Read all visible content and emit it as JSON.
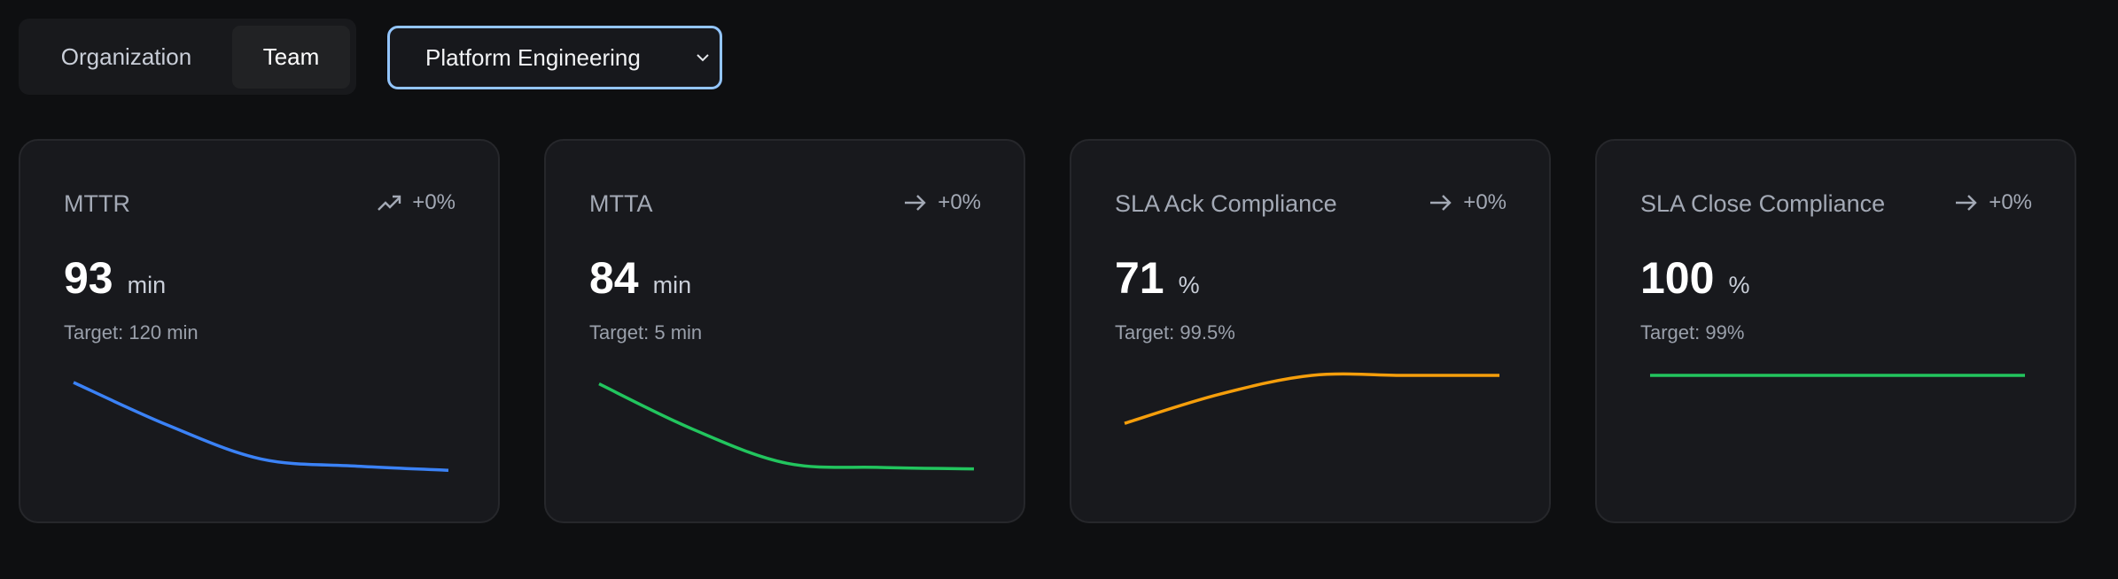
{
  "scope_toggle": {
    "options": [
      "Organization",
      "Team"
    ],
    "selected": "Team"
  },
  "team_select": {
    "value": "Platform Engineering"
  },
  "colors": {
    "accent": "#93c5fd",
    "blue": "#3b82f6",
    "green": "#22c55e",
    "orange": "#f59e0b"
  },
  "cards": [
    {
      "title": "MTTR",
      "trend_icon": "trending-up-icon",
      "trend": "+0%",
      "value": "93",
      "unit": "min",
      "target": "Target: 120 min",
      "color": "#3b82f6"
    },
    {
      "title": "MTTA",
      "trend_icon": "arrow-right-icon",
      "trend": "+0%",
      "value": "84",
      "unit": "min",
      "target": "Target: 5 min",
      "color": "#22c55e"
    },
    {
      "title": "SLA Ack Compliance",
      "trend_icon": "arrow-right-icon",
      "trend": "+0%",
      "value": "71",
      "unit": "%",
      "target": "Target: 99.5%",
      "color": "#f59e0b"
    },
    {
      "title": "SLA Close Compliance",
      "trend_icon": "arrow-right-icon",
      "trend": "+0%",
      "value": "100",
      "unit": "%",
      "target": "Target: 99%",
      "color": "#22c55e"
    }
  ],
  "chart_data": [
    {
      "type": "line",
      "title": "MTTR",
      "values": [
        155,
        125,
        101,
        96,
        93
      ],
      "ylim": [
        90,
        160
      ]
    },
    {
      "type": "line",
      "title": "MTTA",
      "values": [
        144,
        112,
        88,
        85,
        84
      ],
      "ylim": [
        80,
        150
      ]
    },
    {
      "type": "line",
      "title": "SLA Ack Compliance",
      "values": [
        56,
        65,
        71,
        71,
        71
      ],
      "ylim": [
        40,
        71
      ]
    },
    {
      "type": "line",
      "title": "SLA Close Compliance",
      "values": [
        100,
        100,
        100,
        100,
        100
      ],
      "ylim": [
        60,
        100
      ]
    }
  ]
}
